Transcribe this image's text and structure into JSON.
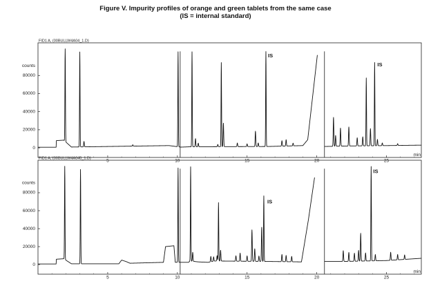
{
  "figure": {
    "title": "Figure V.   Impurity profiles of orange and green tablets from the same case",
    "subtitle": "(IS = internal standard)"
  },
  "chart_data": [
    {
      "type": "line",
      "panel_label": "FID1 A, (00BULLW4A04_1.D)",
      "ylabel": "counts",
      "xunit": "min",
      "xlim": [
        0,
        27.5
      ],
      "ylim": [
        -3000,
        110000
      ],
      "xticks": [
        5,
        10,
        15,
        20,
        25
      ],
      "yticks": [
        0,
        20000,
        40000,
        60000,
        80000
      ],
      "baseline": [
        [
          0,
          700
        ],
        [
          1.3,
          700
        ],
        [
          1.32,
          8000
        ],
        [
          1.85,
          8500
        ],
        [
          2.4,
          900
        ],
        [
          9.4,
          2500
        ],
        [
          10.25,
          800
        ],
        [
          10.95,
          1200
        ],
        [
          16.5,
          1500
        ],
        [
          19.0,
          2500
        ],
        [
          19.35,
          9000
        ],
        [
          20.05,
          104000
        ],
        [
          20.5,
          106000
        ],
        [
          20.55,
          1500
        ],
        [
          22.0,
          2000
        ],
        [
          25.0,
          2500
        ],
        [
          27.5,
          3000
        ]
      ],
      "gaps": [
        [
          20.05,
          20.55
        ]
      ],
      "peaks": [
        {
          "t": 1.95,
          "h": 105000
        },
        {
          "t": 3.0,
          "h": 105000
        },
        {
          "t": 3.3,
          "h": 6000
        },
        {
          "t": 6.8,
          "h": 1500
        },
        {
          "t": 10.05,
          "h": 105000
        },
        {
          "t": 11.05,
          "h": 105000
        },
        {
          "t": 11.3,
          "h": 9000
        },
        {
          "t": 11.5,
          "h": 4000
        },
        {
          "t": 12.9,
          "h": 2500
        },
        {
          "t": 13.15,
          "h": 93000
        },
        {
          "t": 13.3,
          "h": 26000
        },
        {
          "t": 14.3,
          "h": 4000
        },
        {
          "t": 15.0,
          "h": 3000
        },
        {
          "t": 15.6,
          "h": 17000
        },
        {
          "t": 15.8,
          "h": 4000
        },
        {
          "t": 16.35,
          "h": 105000
        },
        {
          "t": 17.5,
          "h": 6000
        },
        {
          "t": 17.8,
          "h": 7000
        },
        {
          "t": 18.3,
          "h": 3000
        },
        {
          "t": 21.2,
          "h": 32000
        },
        {
          "t": 21.35,
          "h": 12000
        },
        {
          "t": 21.7,
          "h": 20000
        },
        {
          "t": 22.3,
          "h": 21000
        },
        {
          "t": 22.9,
          "h": 9000
        },
        {
          "t": 23.3,
          "h": 10000
        },
        {
          "t": 23.55,
          "h": 75000
        },
        {
          "t": 23.85,
          "h": 19000
        },
        {
          "t": 24.15,
          "h": 92000
        },
        {
          "t": 24.35,
          "h": 7000
        },
        {
          "t": 24.7,
          "h": 3000
        },
        {
          "t": 25.8,
          "h": 2000
        }
      ],
      "annotations": [
        {
          "text": "IS",
          "x": 16.5,
          "y": 100000
        },
        {
          "text": "IS",
          "x": 24.35,
          "y": 90000
        }
      ]
    },
    {
      "type": "line",
      "panel_label": "FID1 A, (00BULLW4A040_1.D)",
      "ylabel": "counts",
      "xunit": "min",
      "xlim": [
        0,
        27.5
      ],
      "ylim": [
        -3000,
        110000
      ],
      "xticks": [
        5,
        10,
        15,
        20,
        25
      ],
      "yticks": [
        0,
        20000,
        40000,
        60000,
        80000
      ],
      "baseline": [
        [
          0,
          700
        ],
        [
          1.3,
          700
        ],
        [
          1.32,
          6000
        ],
        [
          1.85,
          6500
        ],
        [
          2.4,
          900
        ],
        [
          5.8,
          900
        ],
        [
          6.0,
          5000
        ],
        [
          6.3,
          3500
        ],
        [
          6.6,
          1500
        ],
        [
          9.0,
          2500
        ],
        [
          9.15,
          20000
        ],
        [
          9.75,
          21000
        ],
        [
          9.85,
          2500
        ],
        [
          10.8,
          2500
        ],
        [
          10.9,
          4000
        ],
        [
          11.5,
          3000
        ],
        [
          12.2,
          2500
        ],
        [
          12.7,
          4000
        ],
        [
          16.5,
          3500
        ],
        [
          18.9,
          3000
        ],
        [
          19.4,
          50000
        ],
        [
          19.85,
          98000
        ],
        [
          20.5,
          100000
        ],
        [
          20.55,
          3500
        ],
        [
          22.0,
          3500
        ],
        [
          25.0,
          4500
        ],
        [
          27.5,
          7000
        ]
      ],
      "gaps": [
        [
          19.85,
          20.55
        ]
      ],
      "peaks": [
        {
          "t": 1.92,
          "h": 105000
        },
        {
          "t": 3.05,
          "h": 105000
        },
        {
          "t": 10.05,
          "h": 105000
        },
        {
          "t": 10.95,
          "h": 105000
        },
        {
          "t": 11.1,
          "h": 10000
        },
        {
          "t": 12.4,
          "h": 6000
        },
        {
          "t": 12.6,
          "h": 5000
        },
        {
          "t": 12.85,
          "h": 6000
        },
        {
          "t": 12.95,
          "h": 65000
        },
        {
          "t": 13.1,
          "h": 12000
        },
        {
          "t": 14.2,
          "h": 6000
        },
        {
          "t": 14.5,
          "h": 9000
        },
        {
          "t": 15.0,
          "h": 6000
        },
        {
          "t": 15.35,
          "h": 35000
        },
        {
          "t": 15.55,
          "h": 14000
        },
        {
          "t": 15.85,
          "h": 6000
        },
        {
          "t": 16.05,
          "h": 38000
        },
        {
          "t": 16.2,
          "h": 73000
        },
        {
          "t": 17.5,
          "h": 8000
        },
        {
          "t": 17.8,
          "h": 7000
        },
        {
          "t": 18.2,
          "h": 6000
        },
        {
          "t": 21.9,
          "h": 12000
        },
        {
          "t": 22.3,
          "h": 10000
        },
        {
          "t": 22.7,
          "h": 9000
        },
        {
          "t": 23.0,
          "h": 12000
        },
        {
          "t": 23.15,
          "h": 31000
        },
        {
          "t": 23.5,
          "h": 9000
        },
        {
          "t": 23.9,
          "h": 105000
        },
        {
          "t": 24.2,
          "h": 7000
        },
        {
          "t": 25.3,
          "h": 9000
        },
        {
          "t": 25.8,
          "h": 6000
        },
        {
          "t": 26.3,
          "h": 5000
        }
      ],
      "annotations": [
        {
          "text": "IS",
          "x": 16.45,
          "y": 68000
        },
        {
          "text": "IS",
          "x": 24.05,
          "y": 102000
        }
      ]
    }
  ]
}
